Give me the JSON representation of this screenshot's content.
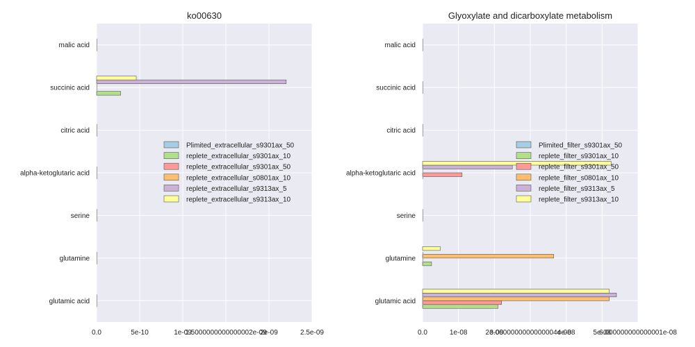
{
  "chart_data": [
    {
      "type": "bar",
      "orientation": "horizontal",
      "title": "ko00630",
      "xlabel": "",
      "ylabel": "",
      "categories": [
        "malic acid",
        "succinic acid",
        "citric acid",
        "alpha-ketoglutaric acid",
        "serine",
        "glutamine",
        "glutamic acid"
      ],
      "xlim": [
        0,
        2.5e-09
      ],
      "x_ticks": [
        0,
        5e-10,
        1e-09,
        1.5e-09,
        2e-09,
        2.5e-09
      ],
      "x_tick_labels": [
        "0.0",
        "5e-10",
        "1e-09",
        "1.5000000000000002e-09",
        "2e-09",
        "2.5e-09"
      ],
      "grid": true,
      "legend_position": "center-right",
      "series": [
        {
          "name": "Plimited_extracellular_s9301ax_50",
          "color": "#a6cee3",
          "values": [
            0,
            0,
            0,
            0,
            0,
            0,
            0
          ]
        },
        {
          "name": "replete_extracellular_s9301ax_10",
          "color": "#b2df8a",
          "values": [
            0,
            2.8e-10,
            0,
            0,
            0,
            0,
            0
          ]
        },
        {
          "name": "replete_extracellular_s9301ax_50",
          "color": "#fb9a99",
          "values": [
            0,
            0,
            0,
            0,
            0,
            0,
            0
          ]
        },
        {
          "name": "replete_extracellular_s0801ax_10",
          "color": "#fdbf6f",
          "values": [
            0,
            0,
            0,
            0,
            0,
            0,
            0
          ]
        },
        {
          "name": "replete_extracellular_s9313ax_5",
          "color": "#cab2d6",
          "values": [
            0,
            2.2e-09,
            0,
            0,
            0,
            0,
            0
          ]
        },
        {
          "name": "replete_extracellular_s9313ax_10",
          "color": "#ffff99",
          "values": [
            0,
            4.6e-10,
            0,
            0,
            0,
            0,
            0
          ]
        }
      ]
    },
    {
      "type": "bar",
      "orientation": "horizontal",
      "title": "Glyoxylate and dicarboxylate metabolism",
      "xlabel": "",
      "ylabel": "",
      "categories": [
        "malic acid",
        "succinic acid",
        "citric acid",
        "alpha-ketoglutaric acid",
        "serine",
        "glutamine",
        "glutamic acid"
      ],
      "xlim": [
        0,
        6e-08
      ],
      "x_ticks": [
        0,
        1e-08,
        2e-08,
        3e-08,
        4e-08,
        5e-08,
        6e-08
      ],
      "x_tick_labels": [
        "0.0",
        "1e-08",
        "2e-08",
        "3.0000000000000004e-08",
        "4e-08",
        "5e-08",
        "6.000000000000001e-08"
      ],
      "grid": true,
      "legend_position": "center-right",
      "series": [
        {
          "name": "Plimited_filter_s9301ax_50",
          "color": "#a6cee3",
          "values": [
            0,
            0,
            0,
            0,
            0,
            0,
            0
          ]
        },
        {
          "name": "replete_filter_s9301ax_10",
          "color": "#b2df8a",
          "values": [
            0,
            0,
            0,
            0,
            0,
            2.5e-09,
            2.1e-08
          ]
        },
        {
          "name": "replete_filter_s9301ax_50",
          "color": "#fb9a99",
          "values": [
            0,
            0,
            0,
            1.1e-08,
            0,
            0,
            2.2e-08
          ]
        },
        {
          "name": "replete_filter_s0801ax_10",
          "color": "#fdbf6f",
          "values": [
            0,
            0,
            0,
            0,
            0,
            3.65e-08,
            5.2e-08
          ]
        },
        {
          "name": "replete_filter_s9313ax_5",
          "color": "#cab2d6",
          "values": [
            0,
            0,
            0,
            2.5e-08,
            0,
            0,
            5.4e-08
          ]
        },
        {
          "name": "replete_filter_s9313ax_10",
          "color": "#ffff99",
          "values": [
            0,
            0,
            0,
            5.25e-08,
            0,
            4.9e-09,
            5.2e-08
          ]
        }
      ]
    }
  ]
}
